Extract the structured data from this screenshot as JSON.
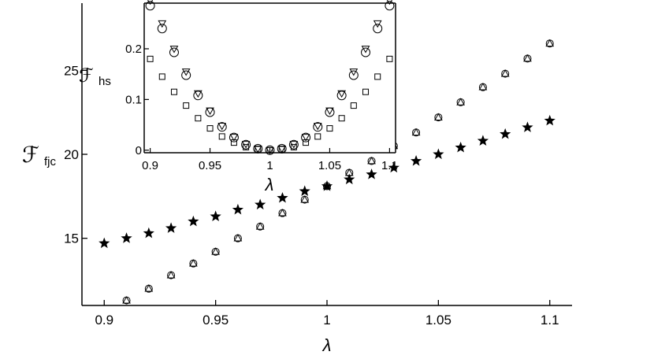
{
  "chart_data": [
    {
      "type": "scatter",
      "xlabel": "λ",
      "ylabel": "ℱ",
      "ylabel_sub": "fjc",
      "xlim": [
        0.89,
        1.11
      ],
      "ylim": [
        11.0,
        29.0
      ],
      "xticks": [
        0.9,
        0.95,
        1,
        1.05,
        1.1
      ],
      "xtick_labels": [
        "0.9",
        "0.95",
        "1",
        "1.05",
        "1.1"
      ],
      "yticks": [
        15,
        20,
        25
      ],
      "ytick_labels": [
        "15",
        "20",
        "25"
      ],
      "series": [
        {
          "marker": "star",
          "x": [
            0.9,
            0.91,
            0.92,
            0.93,
            0.94,
            0.95,
            0.96,
            0.97,
            0.98,
            0.99,
            1.0,
            1.01,
            1.02,
            1.03,
            1.04,
            1.05,
            1.06,
            1.07,
            1.08,
            1.09,
            1.1
          ],
          "y": [
            14.7,
            15.0,
            15.3,
            15.6,
            16.0,
            16.3,
            16.7,
            17.0,
            17.4,
            17.8,
            18.1,
            18.5,
            18.8,
            19.2,
            19.6,
            20.0,
            20.4,
            20.8,
            21.2,
            21.6,
            22.0
          ]
        },
        {
          "marker": "triangle-up",
          "x": [
            0.91,
            0.92,
            0.93,
            0.94,
            0.95,
            0.96,
            0.97,
            0.98,
            0.99,
            1.0,
            1.01,
            1.02,
            1.03,
            1.04,
            1.05,
            1.06,
            1.07,
            1.08,
            1.09,
            1.1
          ],
          "y": [
            11.3,
            12.0,
            12.8,
            13.5,
            14.2,
            15.0,
            15.7,
            16.5,
            17.3,
            18.1,
            18.9,
            19.6,
            20.5,
            21.3,
            22.2,
            23.1,
            24.0,
            24.8,
            25.7,
            26.6
          ]
        },
        {
          "marker": "circle",
          "x": [
            0.91,
            0.92,
            0.93,
            0.94,
            0.95,
            0.96,
            0.97,
            0.98,
            0.99,
            1.0,
            1.01,
            1.02,
            1.03,
            1.04,
            1.05,
            1.06,
            1.07,
            1.08,
            1.09,
            1.1
          ],
          "y": [
            11.3,
            12.0,
            12.8,
            13.5,
            14.2,
            15.0,
            15.7,
            16.5,
            17.3,
            18.1,
            18.9,
            19.6,
            20.5,
            21.3,
            22.2,
            23.1,
            24.0,
            24.8,
            25.7,
            26.6
          ]
        }
      ]
    },
    {
      "type": "scatter",
      "inset": true,
      "xlabel": "λ",
      "ylabel": "ℱ",
      "ylabel_sub": "hs",
      "xlim": [
        0.895,
        1.105
      ],
      "ylim": [
        -0.005,
        0.29
      ],
      "xticks": [
        0.9,
        0.95,
        1,
        1.05,
        1.1
      ],
      "xtick_labels": [
        "0.9",
        "0.95",
        "1",
        "1.05",
        "1.1"
      ],
      "yticks": [
        0,
        0.1,
        0.2
      ],
      "ytick_labels": [
        "0",
        "0.1",
        "0.2"
      ],
      "series": [
        {
          "marker": "circle",
          "x": [
            0.9,
            0.91,
            0.92,
            0.93,
            0.94,
            0.95,
            0.96,
            0.97,
            0.98,
            0.99,
            1.0,
            1.01,
            1.02,
            1.03,
            1.04,
            1.05,
            1.06,
            1.07,
            1.08,
            1.09,
            1.1
          ],
          "y": [
            0.285,
            0.24,
            0.193,
            0.148,
            0.108,
            0.075,
            0.046,
            0.025,
            0.011,
            0.003,
            0.0,
            0.003,
            0.011,
            0.025,
            0.046,
            0.075,
            0.108,
            0.148,
            0.193,
            0.24,
            0.285
          ]
        },
        {
          "marker": "triangle-down",
          "x": [
            0.9,
            0.91,
            0.92,
            0.93,
            0.94,
            0.95,
            0.96,
            0.97,
            0.98,
            0.99,
            1.0,
            1.01,
            1.02,
            1.03,
            1.04,
            1.05,
            1.06,
            1.07,
            1.08,
            1.09,
            1.1
          ],
          "y": [
            0.295,
            0.25,
            0.2,
            0.155,
            0.112,
            0.078,
            0.048,
            0.026,
            0.012,
            0.003,
            0.0,
            0.003,
            0.012,
            0.026,
            0.048,
            0.078,
            0.112,
            0.155,
            0.2,
            0.25,
            0.295
          ]
        },
        {
          "marker": "square",
          "x": [
            0.9,
            0.91,
            0.92,
            0.93,
            0.94,
            0.95,
            0.96,
            0.97,
            0.98,
            0.99,
            1.0,
            1.01,
            1.02,
            1.03,
            1.04,
            1.05,
            1.06,
            1.07,
            1.08,
            1.09,
            1.1
          ],
          "y": [
            0.18,
            0.145,
            0.115,
            0.088,
            0.063,
            0.043,
            0.027,
            0.015,
            0.006,
            0.002,
            0.0,
            0.002,
            0.006,
            0.015,
            0.027,
            0.043,
            0.063,
            0.088,
            0.115,
            0.145,
            0.18
          ]
        }
      ]
    }
  ]
}
